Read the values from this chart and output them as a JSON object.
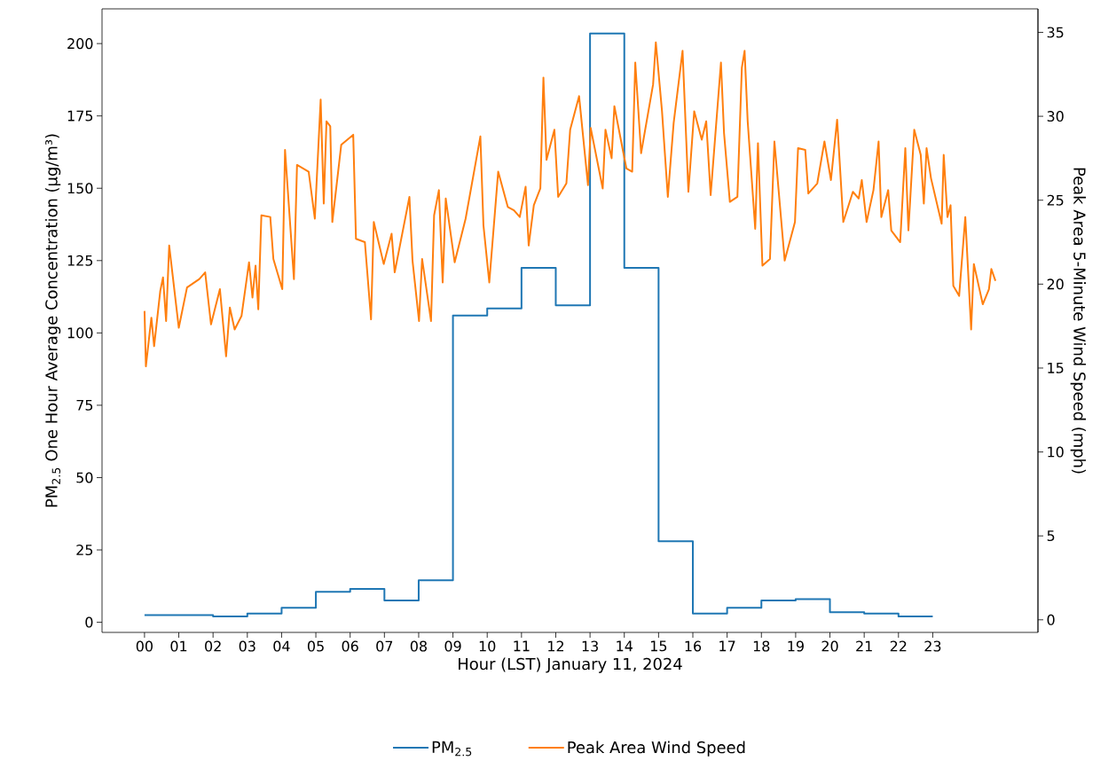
{
  "chart_data": {
    "type": "line",
    "xlabel": "Hour (LST) January 11, 2024",
    "ylabel": "PM$_{2.5}$ One Hour Average Concentration (µg/m³)",
    "y2label": "Peak Area 5-Minute Wind Speed (mph)",
    "xlim": [
      -1.24,
      26.07
    ],
    "ylim": [
      -3.5,
      212
    ],
    "y2lim": [
      -0.75,
      36.4
    ],
    "xticks": [
      {
        "value": 0,
        "label": "00"
      },
      {
        "value": 1,
        "label": "01"
      },
      {
        "value": 2,
        "label": "02"
      },
      {
        "value": 3,
        "label": "03"
      },
      {
        "value": 4,
        "label": "04"
      },
      {
        "value": 5,
        "label": "05"
      },
      {
        "value": 6,
        "label": "06"
      },
      {
        "value": 7,
        "label": "07"
      },
      {
        "value": 8,
        "label": "08"
      },
      {
        "value": 9,
        "label": "09"
      },
      10,
      11,
      12,
      13,
      14,
      15,
      16,
      17,
      18,
      19,
      20,
      21,
      22,
      23
    ],
    "yticks": [
      0,
      25,
      50,
      75,
      100,
      125,
      150,
      175,
      200
    ],
    "y2ticks": [
      0,
      5,
      10,
      15,
      20,
      25,
      30,
      35
    ],
    "legend": "bottom",
    "series": [
      {
        "name": "PM$_{2.5}$",
        "type": "step",
        "color": "#1f77b4",
        "x": [
          0,
          1,
          2,
          3,
          4,
          5,
          6,
          7,
          8,
          9,
          10,
          11,
          12,
          13,
          14,
          15,
          16,
          17,
          18,
          19,
          20,
          21,
          22,
          23
        ],
        "values": [
          2.5,
          2.5,
          2,
          3,
          5,
          10.5,
          11.5,
          7.5,
          14.5,
          106,
          108.5,
          122.5,
          109.5,
          203.5,
          122.5,
          28,
          3,
          5,
          7.5,
          8,
          3.5,
          3,
          2,
          2
        ]
      },
      {
        "name": "Peak Area Wind Speed",
        "axis": "y2",
        "color": "#ff7f0e",
        "x": [
          0,
          0.04,
          0.2,
          0.28,
          0.46,
          0.54,
          0.63,
          0.72,
          0.8,
          1.0,
          1.24,
          1.6,
          1.77,
          1.94,
          2.2,
          2.38,
          2.49,
          2.63,
          2.83,
          3.05,
          3.15,
          3.24,
          3.32,
          3.41,
          3.67,
          3.76,
          4.02,
          4.1,
          4.36,
          4.45,
          4.79,
          4.97,
          5.14,
          5.23,
          5.31,
          5.42,
          5.48,
          5.74,
          6.09,
          6.17,
          6.43,
          6.61,
          6.69,
          6.98,
          7.21,
          7.3,
          7.73,
          7.82,
          8.01,
          8.1,
          8.36,
          8.45,
          8.59,
          8.7,
          8.79,
          9.05,
          9.37,
          9.8,
          9.89,
          10.06,
          10.32,
          10.6,
          10.78,
          10.95,
          11.12,
          11.21,
          11.36,
          11.55,
          11.64,
          11.73,
          11.96,
          12.07,
          12.31,
          12.42,
          12.68,
          12.94,
          13.02,
          13.37,
          13.45,
          13.63,
          13.71,
          14.06,
          14.23,
          14.32,
          14.49,
          14.84,
          14.92,
          15.1,
          15.27,
          15.44,
          15.7,
          15.87,
          16.04,
          16.26,
          16.39,
          16.52,
          16.82,
          16.91,
          17.08,
          17.3,
          17.43,
          17.51,
          17.6,
          17.82,
          17.9,
          18.03,
          18.25,
          18.38,
          18.68,
          18.98,
          19.07,
          19.28,
          19.37,
          19.63,
          19.84,
          20.03,
          20.21,
          20.39,
          20.67,
          20.84,
          20.93,
          21.07,
          21.27,
          21.42,
          21.5,
          21.7,
          21.79,
          22.05,
          22.2,
          22.29,
          22.46,
          22.65,
          22.74,
          22.82,
          22.95,
          23.26,
          23.32,
          23.43,
          23.52,
          23.6,
          23.77,
          23.95,
          24.12,
          24.2,
          24.46,
          24.64,
          24.71,
          24.83
        ],
        "values": [
          18.4,
          15.1,
          18.0,
          16.3,
          19.6,
          20.4,
          17.8,
          22.3,
          20.9,
          17.4,
          19.8,
          20.3,
          20.7,
          17.6,
          19.7,
          15.7,
          18.6,
          17.3,
          18.1,
          21.3,
          19.2,
          21.1,
          18.5,
          24.1,
          24.0,
          21.5,
          19.7,
          28.0,
          20.3,
          27.1,
          26.7,
          23.9,
          31.0,
          24.8,
          29.7,
          29.4,
          23.7,
          28.3,
          28.9,
          22.7,
          22.5,
          17.9,
          23.7,
          21.2,
          23.0,
          20.7,
          25.2,
          21.4,
          17.8,
          21.5,
          17.8,
          24.1,
          25.6,
          20.1,
          25.1,
          21.3,
          23.9,
          28.8,
          23.5,
          20.1,
          26.7,
          24.6,
          24.4,
          24.0,
          25.8,
          22.3,
          24.7,
          25.7,
          32.3,
          27.4,
          29.2,
          25.2,
          26.0,
          29.2,
          31.2,
          25.9,
          29.3,
          25.7,
          29.2,
          27.5,
          30.6,
          26.9,
          26.7,
          33.2,
          27.8,
          31.9,
          34.4,
          30.3,
          25.2,
          29.6,
          33.9,
          25.5,
          30.3,
          28.6,
          29.7,
          25.3,
          33.2,
          29.0,
          24.9,
          25.2,
          32.9,
          33.9,
          29.7,
          23.3,
          28.4,
          21.1,
          21.5,
          28.5,
          21.4,
          23.7,
          28.1,
          28.0,
          25.4,
          26.0,
          28.5,
          26.2,
          29.8,
          23.7,
          25.5,
          25.1,
          26.2,
          23.7,
          25.6,
          28.5,
          24.0,
          25.6,
          23.2,
          22.5,
          28.1,
          23.2,
          29.2,
          27.7,
          24.8,
          28.1,
          26.3,
          23.6,
          27.7,
          24.0,
          24.7,
          19.9,
          19.3,
          24.0,
          17.3,
          21.2,
          18.8,
          19.7,
          20.9,
          20.2
        ]
      }
    ]
  }
}
